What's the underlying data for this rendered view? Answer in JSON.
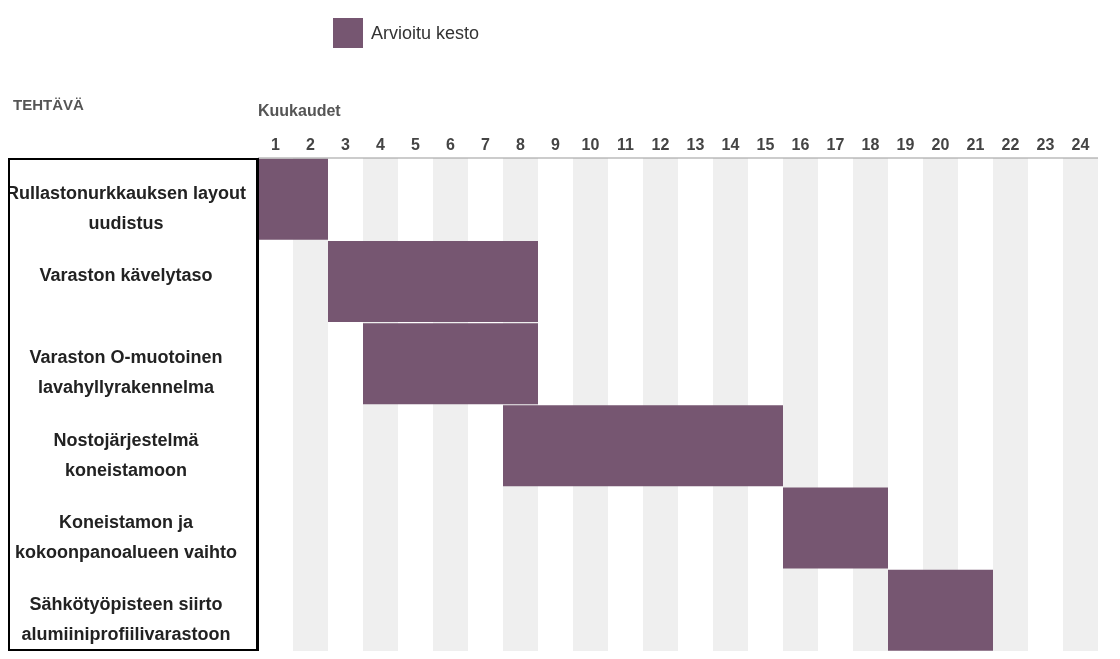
{
  "chart_data": {
    "type": "bar",
    "orientation": "horizontal",
    "ylabel": "TEHTÄVÄ",
    "xlabel": "Kuukaudet",
    "categories": [
      "Rullastonurkkauksen layout uudistus",
      "Varaston kävelytaso",
      "Varaston O-muotoinen lavahyllyrakennelma",
      "Nostojärjestelmä koneistamoon",
      "Koneistamon ja kokoonpanoalueen vaihto",
      "Sähkötyöpisteen siirto alumiiniprofiilivarastoon"
    ],
    "series": [
      {
        "name": "Arvioitu kesto",
        "color": "#765671",
        "values": [
          2,
          6,
          5,
          8,
          3,
          3
        ],
        "base": [
          0.5,
          2.5,
          3.5,
          7.5,
          15.5,
          18.5
        ]
      }
    ],
    "xlim": [
      0.5,
      24.5
    ],
    "xticks": [
      1,
      2,
      3,
      4,
      5,
      6,
      7,
      8,
      9,
      10,
      11,
      12,
      13,
      14,
      15,
      16,
      17,
      18,
      19,
      20,
      21,
      22,
      23,
      24
    ],
    "bands": [
      {
        "axis": "x",
        "from": 1.5,
        "to": 2.5,
        "color": "#efefef"
      },
      {
        "axis": "x",
        "from": 3.5,
        "to": 4.5,
        "color": "#efefef"
      },
      {
        "axis": "x",
        "from": 5.5,
        "to": 6.5,
        "color": "#efefef"
      },
      {
        "axis": "x",
        "from": 7.5,
        "to": 8.5,
        "color": "#efefef"
      },
      {
        "axis": "x",
        "from": 9.5,
        "to": 10.5,
        "color": "#efefef"
      },
      {
        "axis": "x",
        "from": 11.5,
        "to": 12.5,
        "color": "#efefef"
      },
      {
        "axis": "x",
        "from": 13.5,
        "to": 14.5,
        "color": "#efefef"
      },
      {
        "axis": "x",
        "from": 15.5,
        "to": 16.5,
        "color": "#efefef"
      },
      {
        "axis": "x",
        "from": 17.5,
        "to": 18.5,
        "color": "#efefef"
      },
      {
        "axis": "x",
        "from": 19.5,
        "to": 20.5,
        "color": "#efefef"
      },
      {
        "axis": "x",
        "from": 21.5,
        "to": 22.5,
        "color": "#efefef"
      },
      {
        "axis": "x",
        "from": 23.5,
        "to": 24.5,
        "color": "#efefef"
      }
    ],
    "legend": "top"
  }
}
